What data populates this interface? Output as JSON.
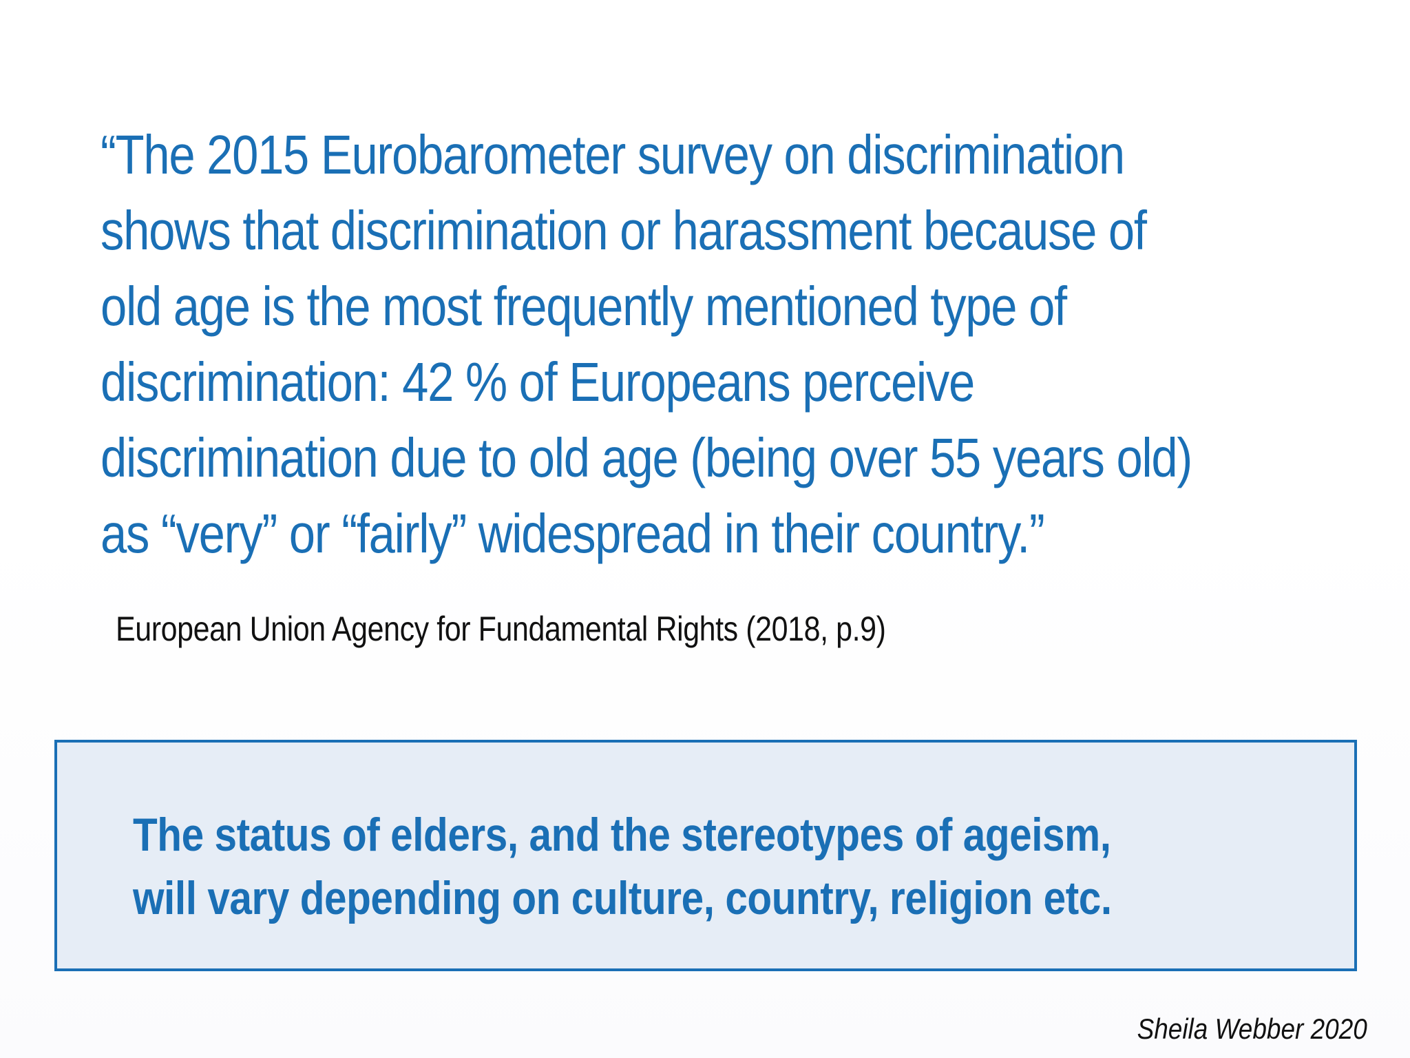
{
  "quote": {
    "lines": [
      "“The 2015 Eurobarometer survey on discrimination",
      "shows that discrimination or harassment because of",
      "old age is the most frequently mentioned type of",
      "discrimination: 42 % of Europeans perceive",
      "discrimination due to old age (being over 55 years old)",
      "as “very” or “fairly” widespread in their country.”"
    ]
  },
  "citation": "European Union Agency for Fundamental Rights (2018, p.9)",
  "note": {
    "lines": [
      "The status of elders, and the stereotypes of ageism,",
      "will vary depending on culture, country, religion etc."
    ]
  },
  "credit": "Sheila Webber 2020",
  "colors": {
    "accent": "#1a6fb5",
    "box_fill": "#e6edf6",
    "text_dark": "#111111"
  }
}
